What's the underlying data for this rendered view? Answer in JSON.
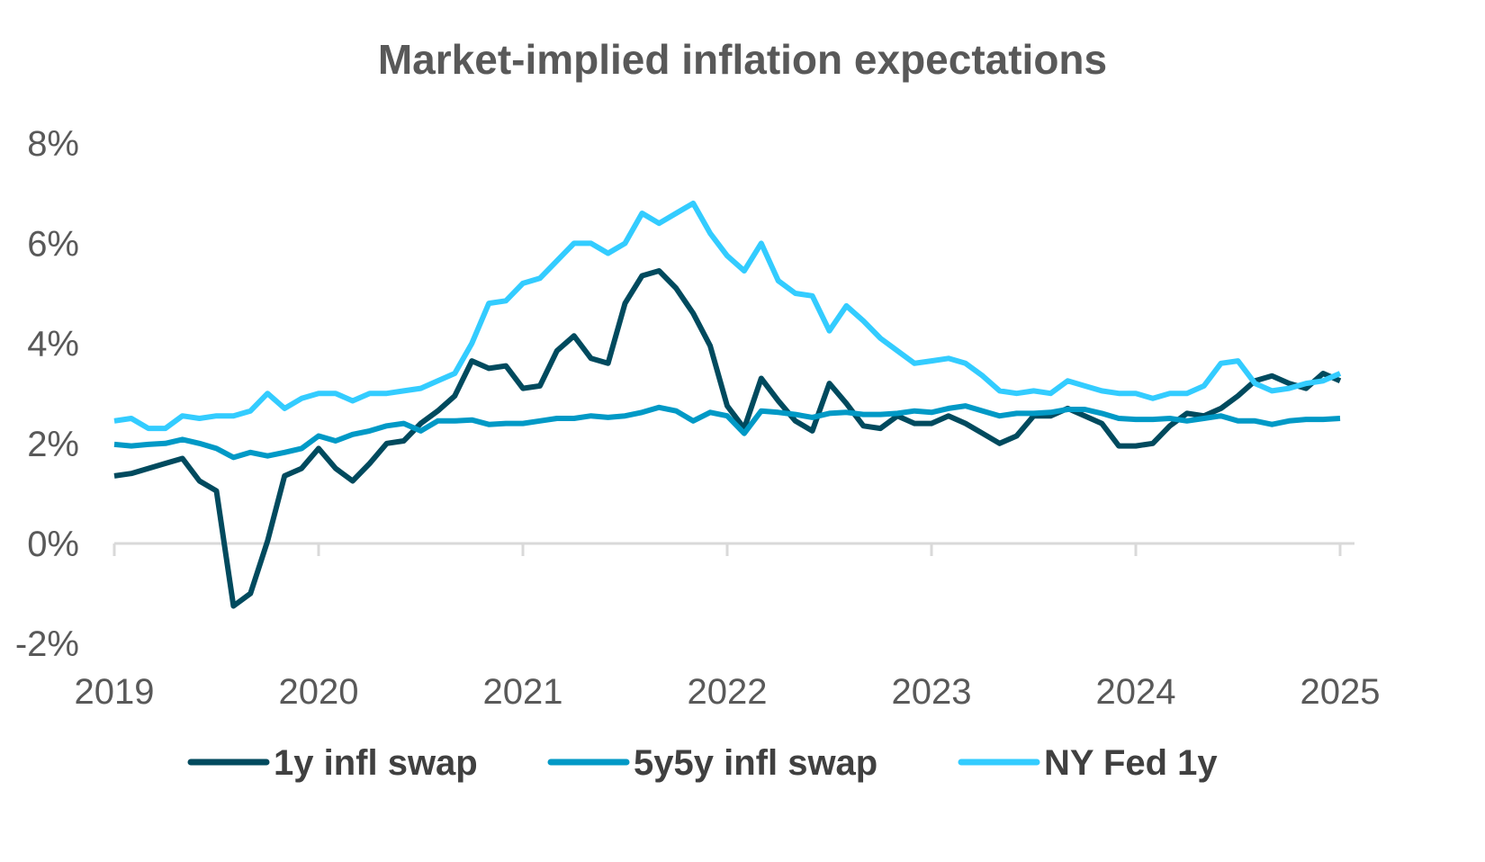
{
  "chart_data": {
    "type": "line",
    "title": "Market-implied inflation expectations",
    "xlabel": "",
    "ylabel": "",
    "x_start": "2019-01",
    "x_frequency": "monthly",
    "xlim": [
      2019,
      2025
    ],
    "ylim": [
      -2,
      8
    ],
    "x_ticks": [
      "2019",
      "2020",
      "2021",
      "2022",
      "2023",
      "2024",
      "2025"
    ],
    "y_ticks": [
      "-2%",
      "0%",
      "2%",
      "4%",
      "6%",
      "8%"
    ],
    "grid": false,
    "legend_position": "bottom",
    "series": [
      {
        "name": "1y infl swap",
        "color": "#004a5e",
        "values": [
          1.35,
          1.4,
          1.5,
          1.6,
          1.7,
          1.25,
          1.05,
          -1.25,
          -1.0,
          0.05,
          1.35,
          1.5,
          1.9,
          1.5,
          1.25,
          1.6,
          2.0,
          2.05,
          2.4,
          2.65,
          2.95,
          3.65,
          3.5,
          3.55,
          3.1,
          3.15,
          3.85,
          4.15,
          3.7,
          3.6,
          4.8,
          5.35,
          5.45,
          5.1,
          4.6,
          3.95,
          2.75,
          2.3,
          3.3,
          2.85,
          2.45,
          2.25,
          3.2,
          2.8,
          2.35,
          2.3,
          2.55,
          2.4,
          2.4,
          2.55,
          2.4,
          2.2,
          2.0,
          2.15,
          2.55,
          2.55,
          2.7,
          2.55,
          2.4,
          1.95,
          1.95,
          2.0,
          2.35,
          2.6,
          2.55,
          2.7,
          2.95,
          3.25,
          3.35,
          3.2,
          3.1,
          3.4,
          3.25
        ]
      },
      {
        "name": "5y5y infl swap",
        "color": "#0099c6",
        "values": [
          1.98,
          1.95,
          1.98,
          2.0,
          2.08,
          2.0,
          1.9,
          1.72,
          1.82,
          1.75,
          1.82,
          1.9,
          2.15,
          2.05,
          2.18,
          2.25,
          2.35,
          2.4,
          2.25,
          2.45,
          2.45,
          2.47,
          2.38,
          2.4,
          2.4,
          2.45,
          2.5,
          2.5,
          2.55,
          2.52,
          2.55,
          2.62,
          2.72,
          2.65,
          2.45,
          2.62,
          2.55,
          2.2,
          2.65,
          2.62,
          2.58,
          2.52,
          2.6,
          2.62,
          2.58,
          2.58,
          2.6,
          2.65,
          2.62,
          2.7,
          2.75,
          2.65,
          2.55,
          2.6,
          2.6,
          2.62,
          2.68,
          2.68,
          2.6,
          2.5,
          2.48,
          2.48,
          2.5,
          2.45,
          2.5,
          2.55,
          2.45,
          2.45,
          2.38,
          2.45,
          2.48,
          2.48,
          2.5
        ]
      },
      {
        "name": "NY Fed 1y",
        "color": "#33ccff",
        "values": [
          2.45,
          2.5,
          2.3,
          2.3,
          2.55,
          2.5,
          2.55,
          2.55,
          2.65,
          3.0,
          2.7,
          2.9,
          3.0,
          3.0,
          2.85,
          3.0,
          3.0,
          3.05,
          3.1,
          3.25,
          3.4,
          4.0,
          4.8,
          4.85,
          5.2,
          5.3,
          5.65,
          6.0,
          6.0,
          5.8,
          6.0,
          6.6,
          6.4,
          6.6,
          6.8,
          6.2,
          5.75,
          5.45,
          6.0,
          5.25,
          5.0,
          4.95,
          4.25,
          4.75,
          4.45,
          4.1,
          3.85,
          3.6,
          3.65,
          3.7,
          3.6,
          3.35,
          3.05,
          3.0,
          3.05,
          3.0,
          3.25,
          3.15,
          3.05,
          3.0,
          3.0,
          2.9,
          3.0,
          3.0,
          3.15,
          3.6,
          3.65,
          3.2,
          3.05,
          3.1,
          3.2,
          3.25,
          3.4
        ]
      }
    ]
  }
}
